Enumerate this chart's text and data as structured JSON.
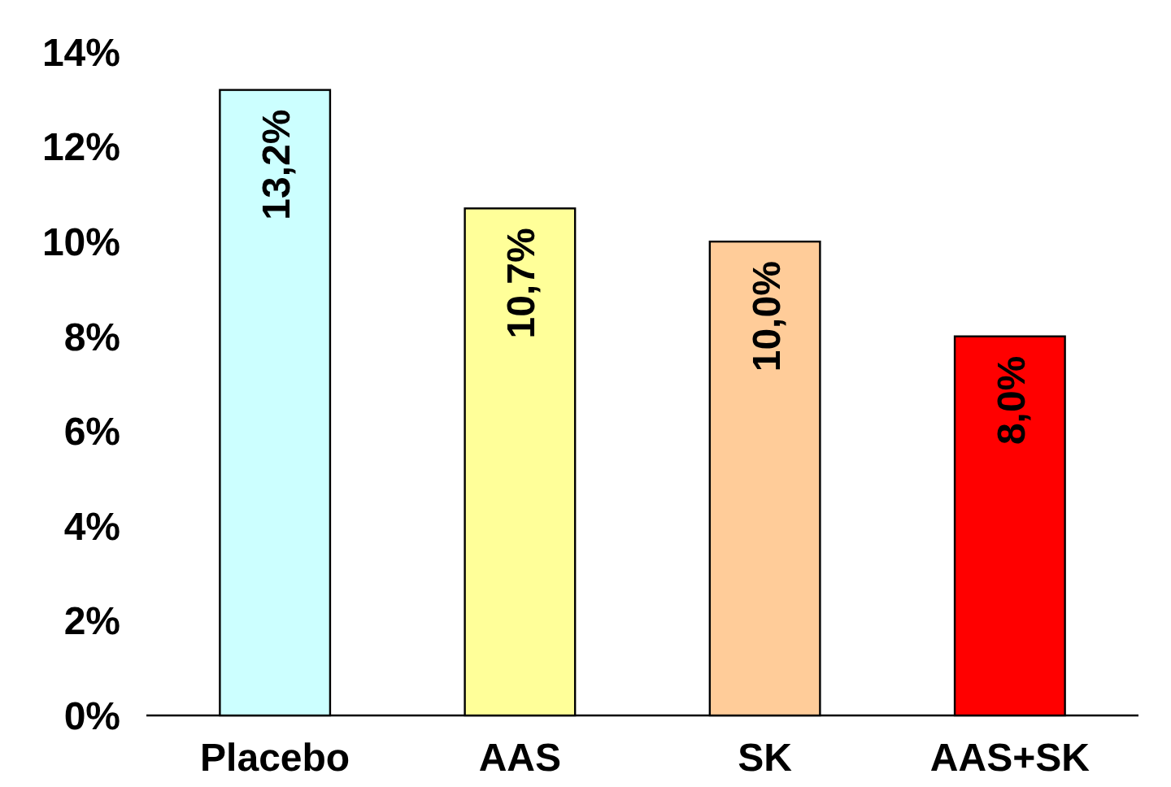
{
  "chart_data": {
    "type": "bar",
    "categories": [
      "Placebo",
      "AAS",
      "SK",
      "AAS+SK"
    ],
    "values": [
      13.2,
      10.7,
      10.0,
      8.0
    ],
    "colors": [
      "#ccffff",
      "#ffff99",
      "#ffcc99",
      "#ff0000"
    ],
    "value_labels": [
      "13,2%",
      "10,7%",
      "10,0%",
      "8,0%"
    ],
    "ylim": [
      0,
      14
    ],
    "yticks": [
      {
        "value": 0,
        "label": "0%"
      },
      {
        "value": 2,
        "label": "2%"
      },
      {
        "value": 4,
        "label": "4%"
      },
      {
        "value": 6,
        "label": "6%"
      },
      {
        "value": 8,
        "label": "8%"
      },
      {
        "value": 10,
        "label": "10%"
      },
      {
        "value": 12,
        "label": "12%"
      },
      {
        "value": 14,
        "label": "14%"
      }
    ],
    "grid": false
  }
}
